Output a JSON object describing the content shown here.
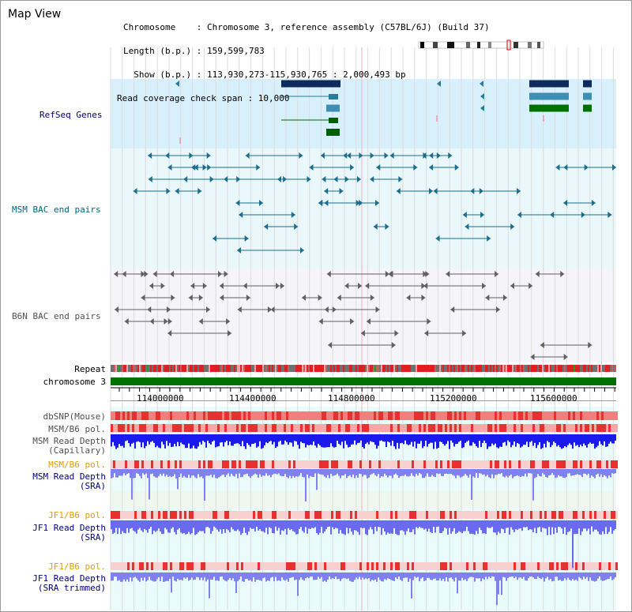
{
  "title": "Map View",
  "info": {
    "chromosome": "Chromosome    : Chromosome 3, reference assembly (C57BL/6J) (Build 37)",
    "length": "Length (b.p.) : 159,599,783",
    "show": "  Show (b.p.) : 113,930,273-115,930,765 : 2,000,493 bp",
    "coverage": "Read coverage check span : 10,000"
  },
  "tracks": {
    "refseq": "RefSeq Genes",
    "msm_bac": "MSM BAC end pairs",
    "b6n_bac": "B6N BAC end pairs",
    "repeat": "Repeat",
    "chromosome": "chromosome 3",
    "dbsnp": "dbSNP(Mouse)",
    "msm_b6_pol_1": "MSM/B6 pol.",
    "msm_depth_cap_1": "MSM Read Depth",
    "msm_depth_cap_2": "(Capillary)",
    "msm_b6_pol_2": "MSM/B6 pol.",
    "msm_depth_sra_1": "MSM Read Depth",
    "msm_depth_sra_2": "(SRA)",
    "jf1_b6_pol_1": "JF1/B6 pol.",
    "jf1_depth_sra_1": "JF1 Read Depth",
    "jf1_depth_sra_2": "(SRA)",
    "jf1_b6_pol_2": "JF1/B6 pol.",
    "jf1_depth_trim_1": "JF1 Read Depth",
    "jf1_depth_trim_2": "(SRA trimmed)"
  },
  "ruler": {
    "ticks": [
      "114000000",
      "114400000",
      "114800000",
      "115200000",
      "115600000"
    ]
  },
  "colors": {
    "label_blue": "#000080",
    "label_teal": "#006680",
    "label_gray": "#505050",
    "label_orange": "#e0a000",
    "refseq_bg": "#d8f0fb",
    "bac_bg": "#eaf7fb",
    "depth_blue": "#1a1aee",
    "depth_light": "#7878ee",
    "pol_red": "#e83030",
    "chrom_green": "#007000"
  }
}
